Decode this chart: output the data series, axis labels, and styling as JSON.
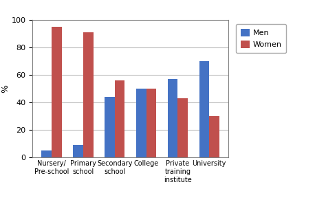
{
  "categories": [
    "Nursery/\nPre-school",
    "Primary\nschool",
    "Secondary\nschool",
    "College",
    "Private\ntraining\ninstitute",
    "University"
  ],
  "men_values": [
    5,
    9,
    44,
    50,
    57,
    70
  ],
  "women_values": [
    95,
    91,
    56,
    50,
    43,
    30
  ],
  "men_color": "#4472C4",
  "women_color": "#C0504D",
  "ylabel": "%",
  "ylim": [
    0,
    100
  ],
  "yticks": [
    0,
    20,
    40,
    60,
    80,
    100
  ],
  "legend_labels": [
    "Men",
    "Women"
  ],
  "bar_width": 0.32,
  "grid_color": "#C0C0C0",
  "background_color": "#FFFFFF",
  "outer_bg": "#F0F0F0"
}
